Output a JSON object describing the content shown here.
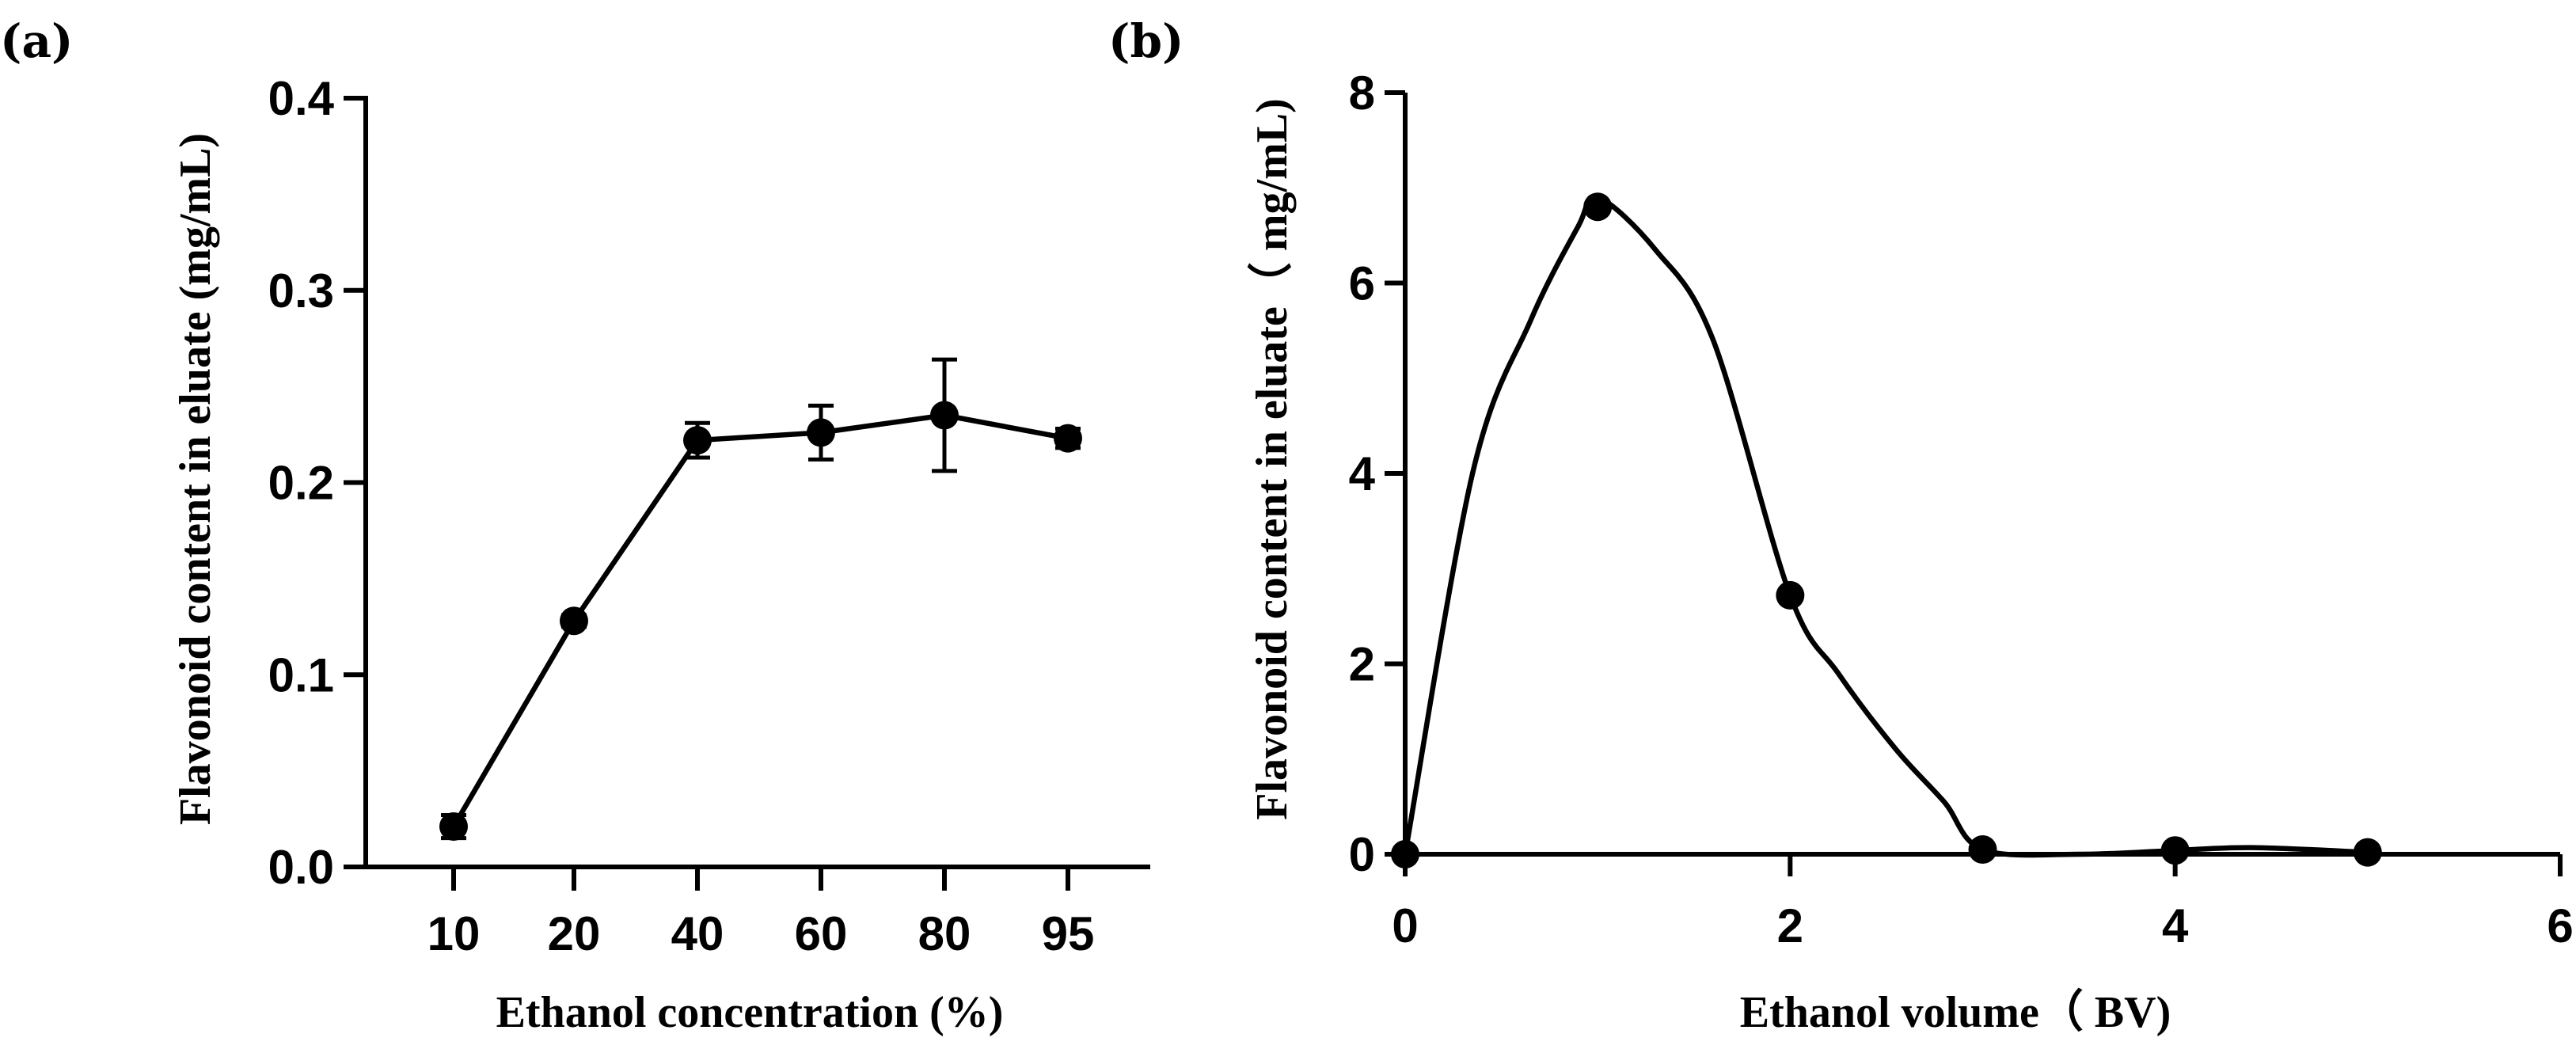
{
  "chart_data": [
    {
      "panel": "(a)",
      "type": "line",
      "categories": [
        "10",
        "20",
        "40",
        "60",
        "80",
        "95"
      ],
      "values": [
        0.021,
        0.128,
        0.222,
        0.226,
        0.235,
        0.223
      ],
      "errors": [
        0.006,
        0.003,
        0.009,
        0.014,
        0.029,
        0.005
      ],
      "ylim": [
        0.0,
        0.4
      ],
      "yticks": [
        "0.0",
        "0.1",
        "0.2",
        "0.3",
        "0.4"
      ],
      "ytick_values": [
        0.0,
        0.1,
        0.2,
        0.3,
        0.4
      ],
      "xlabel": "Ethanol concentration (%)",
      "ylabel": "Flavonoid content in eluate (mg/mL)",
      "grid": false,
      "markers": "filled-circle",
      "error_bars": true
    },
    {
      "panel": "(b)",
      "type": "line",
      "x": [
        0,
        1,
        2,
        3,
        4,
        5
      ],
      "values": [
        0.0,
        6.8,
        2.72,
        0.05,
        0.04,
        0.02
      ],
      "curve": {
        "x": [
          0,
          0.35,
          0.65,
          0.9,
          1.0,
          1.3,
          1.6,
          2.0,
          2.25,
          2.55,
          2.8,
          3.0,
          3.5,
          4.0,
          4.4,
          5.0
        ],
        "y": [
          0.0,
          4.0,
          5.6,
          6.6,
          6.9,
          6.35,
          5.4,
          2.72,
          1.9,
          1.1,
          0.55,
          0.05,
          0.0,
          0.04,
          0.07,
          0.02
        ]
      },
      "xlim": [
        0,
        6
      ],
      "ylim": [
        0,
        8
      ],
      "xticks": [
        "0",
        "2",
        "4",
        "6"
      ],
      "xtick_values": [
        0,
        2,
        4,
        6
      ],
      "yticks": [
        "0",
        "2",
        "4",
        "6",
        "8"
      ],
      "ytick_values": [
        0,
        2,
        4,
        6,
        8
      ],
      "xlabel": "Ethanol volume（ BV)",
      "ylabel": "Flavonoid content in eluate（ mg/mL)",
      "grid": false,
      "markers": "filled-circle",
      "smoothed": true
    }
  ]
}
